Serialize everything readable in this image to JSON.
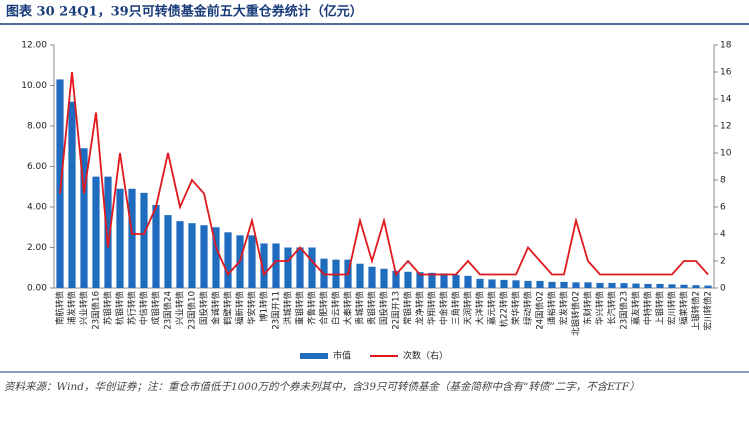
{
  "chart_data": {
    "type": "bar_line",
    "title": "图表 30    24Q1，39只可转债基金前五大重仓券统计（亿元）",
    "source": "资料来源：Wind，华创证券；注：重仓市值低于1000万的个券未列其中，含39只可转债基金（基金简称中含有“转债”二字，不含ETF）",
    "categories": [
      "南航转债",
      "浦发转债",
      "兴业转债",
      "23国债16",
      "苏银转债",
      "杭银转债",
      "苏行转债",
      "中信转债",
      "成银转债",
      "23国债24",
      "兴业转债",
      "23国债10",
      "国投转债",
      "金诚转债",
      "鹤壁转债",
      "福新转债",
      "华安转债",
      "博1转债",
      "23国开11",
      "洪城转债",
      "重银转债",
      "齐鲁转债",
      "合肥转债",
      "白云转债",
      "大秦转债",
      "贵城转债",
      "贵银转债",
      "国投转债",
      "22国开13",
      "常银转债",
      "龙净转债",
      "华翔转债",
      "中金转债",
      "三角转债",
      "天润转债",
      "大洋转债",
      "嘉元转债",
      "杭22转债",
      "荣华转债",
      "绿动转债",
      "24国债02",
      "通裕转债",
      "宏发转债",
      "北银转债02",
      "东财转债",
      "华兴转债",
      "长汽转债",
      "23国债23",
      "嘉友转债",
      "中特转债",
      "上银转债",
      "宏川转债",
      "福莱转债",
      "上银转债2",
      "宏川转债2"
    ],
    "series": [
      {
        "name": "市值",
        "color": "#1f6cbf",
        "axis": "y",
        "values": [
          10.3,
          9.2,
          6.9,
          5.5,
          5.5,
          4.9,
          4.9,
          4.7,
          4.1,
          3.6,
          3.3,
          3.2,
          3.1,
          3.0,
          2.75,
          2.6,
          2.6,
          2.2,
          2.2,
          2.0,
          2.0,
          2.0,
          1.45,
          1.4,
          1.4,
          1.2,
          1.05,
          0.95,
          0.85,
          0.8,
          0.78,
          0.75,
          0.72,
          0.65,
          0.6,
          0.45,
          0.42,
          0.4,
          0.38,
          0.35,
          0.35,
          0.3,
          0.3,
          0.28,
          0.28,
          0.25,
          0.25,
          0.24,
          0.22,
          0.2,
          0.2,
          0.18,
          0.16,
          0.14,
          0.12
        ]
      },
      {
        "name": "次数（右）",
        "color": "#e0191d",
        "axis": "y2",
        "values": [
          7,
          16,
          7,
          13,
          3,
          10,
          4,
          4,
          6,
          10,
          6,
          8,
          7,
          3,
          1,
          2,
          5,
          1,
          2,
          2,
          3,
          2,
          1,
          1,
          1,
          5,
          2,
          5,
          1,
          2,
          1,
          1,
          1,
          1,
          2,
          1,
          1,
          1,
          1,
          3,
          2,
          1,
          1,
          5,
          2,
          1,
          1,
          1,
          1,
          1,
          1,
          1,
          2,
          2,
          1
        ]
      }
    ],
    "ylim": [
      0,
      12
    ],
    "yticks": [
      {
        "value": 0,
        "label": "0.00"
      },
      {
        "value": 2,
        "label": "2.00"
      },
      {
        "value": 4,
        "label": "4.00"
      },
      {
        "value": 6,
        "label": "6.00"
      },
      {
        "value": 8,
        "label": "8.00"
      },
      {
        "value": 10,
        "label": "10.00"
      },
      {
        "value": 12,
        "label": "12.00"
      }
    ],
    "y2lim": [
      0,
      18
    ],
    "y2ticks": [
      0,
      2,
      4,
      6,
      8,
      10,
      12,
      14,
      16,
      18
    ]
  }
}
